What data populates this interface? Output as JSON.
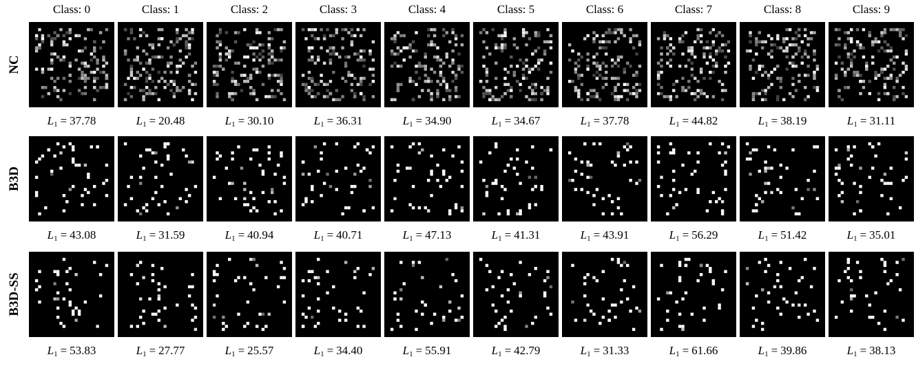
{
  "columns": [
    "Class: 0",
    "Class: 1",
    "Class: 2",
    "Class: 3",
    "Class: 4",
    "Class: 5",
    "Class: 6",
    "Class: 7",
    "Class: 8",
    "Class: 9"
  ],
  "metric": {
    "symbol": "L",
    "subscript": "1",
    "relation": "="
  },
  "rows": [
    {
      "label": "NC",
      "scores": [
        "37.78",
        "20.48",
        "30.10",
        "36.31",
        "34.90",
        "34.67",
        "37.78",
        "44.82",
        "38.19",
        "31.11"
      ]
    },
    {
      "label": "B3D",
      "scores": [
        "43.08",
        "31.59",
        "40.94",
        "40.71",
        "47.13",
        "41.31",
        "43.91",
        "56.29",
        "51.42",
        "35.01"
      ]
    },
    {
      "label": "B3D-SS",
      "scores": [
        "53.83",
        "27.77",
        "25.57",
        "34.40",
        "55.91",
        "42.79",
        "31.33",
        "61.66",
        "39.86",
        "38.13"
      ]
    }
  ]
}
